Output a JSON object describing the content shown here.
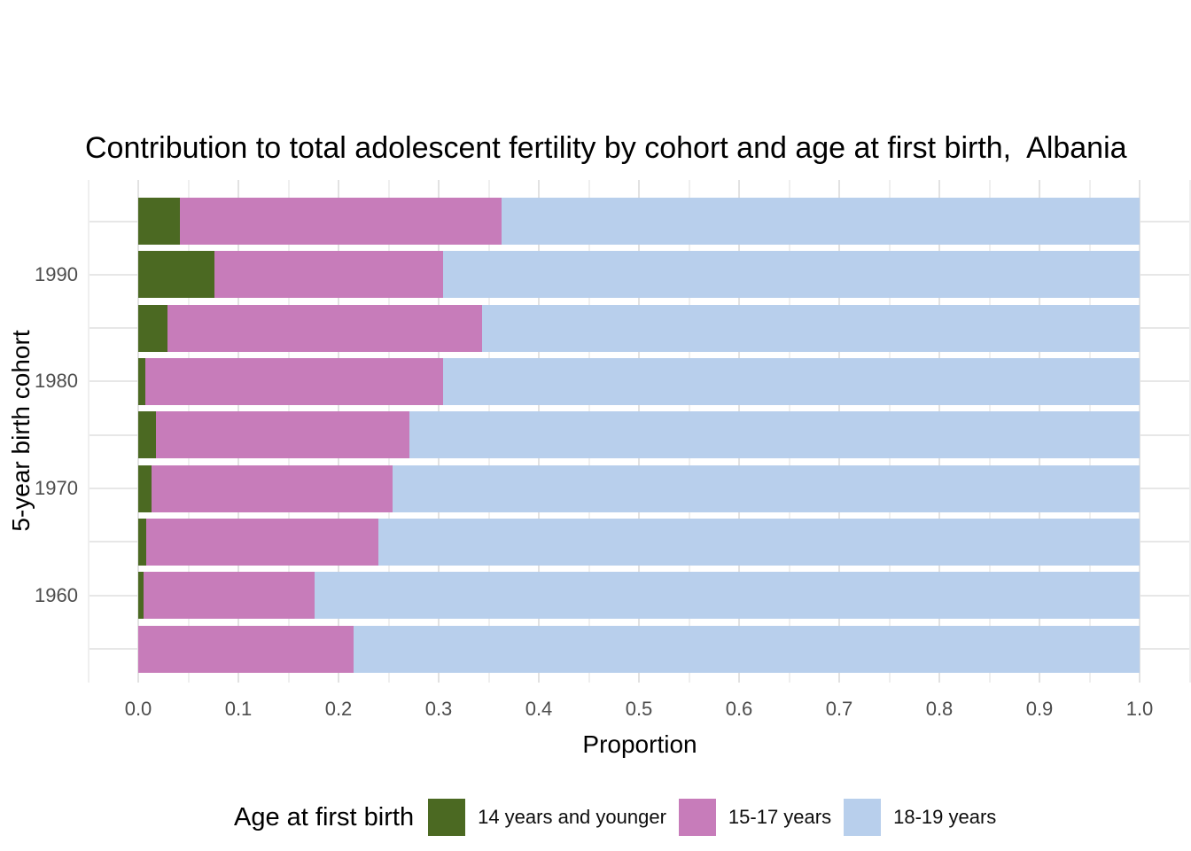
{
  "colors": {
    "age_14_and_younger": "#4b6922",
    "age_15_17": "#c77cba",
    "age_18_19": "#b8cfec",
    "grid_major": "#e2e2e2",
    "grid_minor": "#efefef",
    "grid_horizontal": "#e7e7e7",
    "tick_text": "#4d4d4d",
    "title_text": "#000000"
  },
  "chart_data": {
    "type": "bar",
    "orientation": "horizontal",
    "stacked": true,
    "title": "Contribution to total adolescent fertility by cohort and age at first birth,  Albania",
    "xlabel": "Proportion",
    "ylabel": "5-year birth cohort",
    "xlim": [
      0.0,
      1.0
    ],
    "x_ticks": [
      "0.0",
      "0.1",
      "0.2",
      "0.3",
      "0.4",
      "0.5",
      "0.6",
      "0.7",
      "0.8",
      "0.9",
      "1.0"
    ],
    "grid": "on",
    "y_categories_top_to_bottom": [
      "",
      "1990",
      "",
      "1980",
      "",
      "1970",
      "",
      "1960",
      ""
    ],
    "visible_y_tick_labels": [
      "1990",
      "1980",
      "1970",
      "1960"
    ],
    "series": [
      {
        "name": "14 years and younger",
        "color": "#4b6922",
        "values": [
          0.042,
          0.076,
          0.029,
          0.007,
          0.018,
          0.013,
          0.008,
          0.005,
          0.0
        ]
      },
      {
        "name": "15-17 years",
        "color": "#c77cba",
        "values": [
          0.321,
          0.228,
          0.314,
          0.297,
          0.253,
          0.241,
          0.232,
          0.171,
          0.215
        ]
      },
      {
        "name": "18-19 years",
        "color": "#b8cfec",
        "values": [
          0.637,
          0.696,
          0.657,
          0.696,
          0.729,
          0.746,
          0.76,
          0.824,
          0.785
        ]
      }
    ],
    "legend": {
      "title": "Age at first birth",
      "position": "bottom"
    }
  }
}
